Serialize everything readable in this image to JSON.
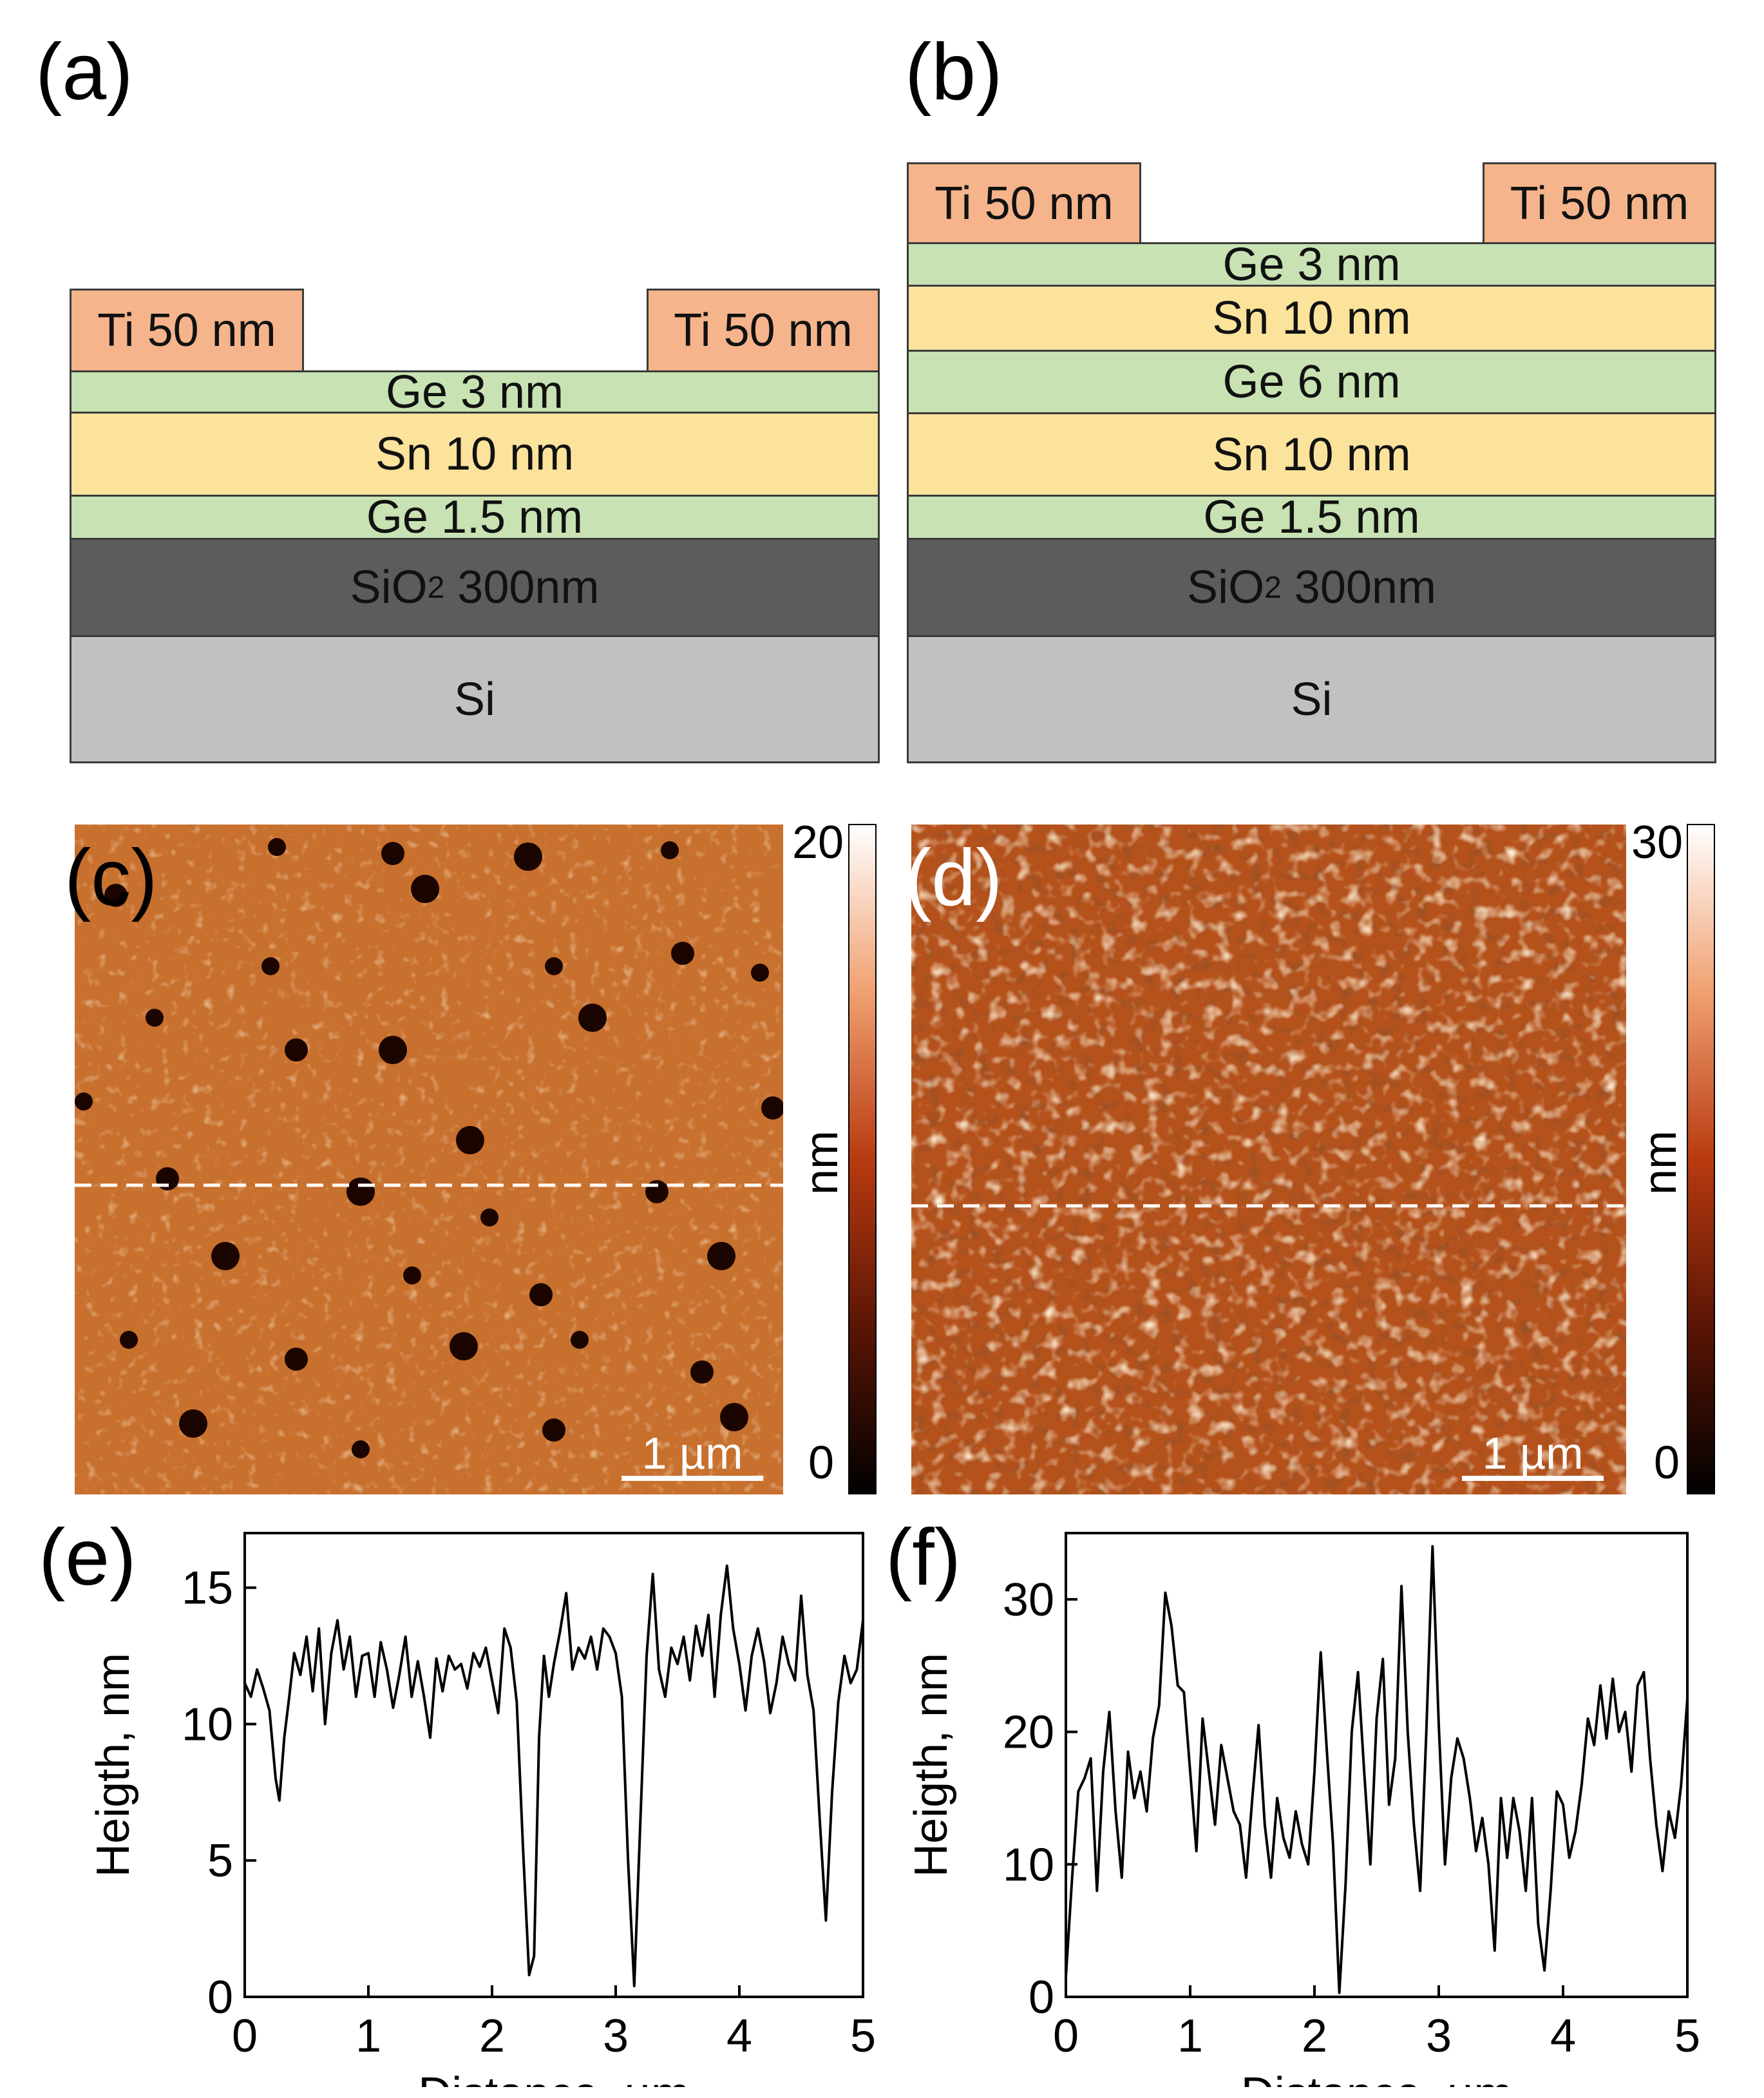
{
  "figure": {
    "panel_a": {
      "label": "(a)",
      "electrode_left": "Ti 50 nm",
      "electrode_right": "Ti 50 nm",
      "layers": [
        "Ge 3 nm",
        "Sn 10 nm",
        "Ge 1.5 nm"
      ],
      "oxide": {
        "main": "SiO",
        "sub": "2",
        "rest": " 300nm"
      },
      "substrate": "Si"
    },
    "panel_b": {
      "label": "(b)",
      "electrode_left": "Ti 50 nm",
      "electrode_right": "Ti 50 nm",
      "layers": [
        "Ge 3 nm",
        "Sn 10 nm",
        "Ge 6 nm",
        "Sn 10 nm",
        "Ge 1.5 nm"
      ],
      "oxide": {
        "main": "SiO",
        "sub": "2",
        "rest": " 300nm"
      },
      "substrate": "Si"
    },
    "panel_c": {
      "label": "(c)",
      "scale_bar": "1 µm",
      "colorbar_max": "20",
      "colorbar_min": "0",
      "colorbar_unit": "nm"
    },
    "panel_d": {
      "label": "(d)",
      "scale_bar": "1 µm",
      "colorbar_max": "30",
      "colorbar_min": "0",
      "colorbar_unit": "nm"
    },
    "colors": {
      "ti": "#f5b48c",
      "ge": "#c8e2b3",
      "sn": "#fbe39c",
      "sio2": "#5c5c5c",
      "si": "#c1c1c1",
      "afm_base": "#c8702e"
    }
  },
  "chart_data": [
    {
      "id": "e",
      "label": "(e)",
      "type": "line",
      "xlabel": "Distance, µm",
      "ylabel": "Heigth, nm",
      "xlim": [
        0,
        5
      ],
      "ylim": [
        0,
        17
      ],
      "xticks": [
        "0",
        "1",
        "2",
        "3",
        "4",
        "5"
      ],
      "yticks": [
        "0",
        "5",
        "10",
        "15"
      ],
      "x": [
        0,
        0.05,
        0.1,
        0.15,
        0.2,
        0.25,
        0.28,
        0.32,
        0.36,
        0.4,
        0.45,
        0.5,
        0.55,
        0.6,
        0.65,
        0.7,
        0.75,
        0.8,
        0.85,
        0.9,
        0.95,
        1.0,
        1.05,
        1.1,
        1.15,
        1.2,
        1.25,
        1.3,
        1.35,
        1.4,
        1.45,
        1.5,
        1.55,
        1.6,
        1.65,
        1.7,
        1.75,
        1.8,
        1.85,
        1.9,
        1.95,
        2.0,
        2.05,
        2.1,
        2.15,
        2.2,
        2.25,
        2.3,
        2.34,
        2.38,
        2.42,
        2.46,
        2.5,
        2.55,
        2.6,
        2.65,
        2.7,
        2.75,
        2.8,
        2.85,
        2.9,
        2.95,
        3.0,
        3.05,
        3.1,
        3.15,
        3.2,
        3.25,
        3.3,
        3.35,
        3.4,
        3.45,
        3.5,
        3.55,
        3.6,
        3.65,
        3.7,
        3.75,
        3.8,
        3.85,
        3.9,
        3.95,
        4.0,
        4.05,
        4.1,
        4.15,
        4.2,
        4.25,
        4.3,
        4.35,
        4.4,
        4.45,
        4.5,
        4.55,
        4.6,
        4.65,
        4.7,
        4.75,
        4.8,
        4.85,
        4.9,
        4.95,
        5.0
      ],
      "values": [
        11.5,
        11.0,
        12.0,
        11.3,
        10.5,
        8.0,
        7.2,
        9.5,
        11.0,
        12.6,
        11.8,
        13.2,
        11.2,
        13.5,
        10.0,
        12.6,
        13.8,
        12.0,
        13.2,
        11.0,
        12.5,
        12.6,
        11.0,
        13.0,
        12.0,
        10.6,
        11.8,
        13.2,
        11.0,
        12.3,
        11.0,
        9.5,
        12.4,
        11.2,
        12.5,
        12.0,
        12.2,
        11.3,
        12.6,
        12.1,
        12.8,
        11.6,
        10.4,
        13.5,
        12.8,
        10.8,
        5.5,
        0.8,
        1.5,
        9.5,
        12.5,
        11.0,
        12.2,
        13.4,
        14.8,
        12.0,
        12.8,
        12.4,
        13.2,
        12.0,
        13.5,
        13.2,
        12.6,
        11.0,
        5.0,
        0.4,
        6.5,
        12.5,
        15.5,
        12.0,
        11.0,
        12.8,
        12.2,
        13.2,
        11.6,
        13.6,
        12.5,
        14.0,
        11.0,
        14.0,
        15.8,
        13.5,
        12.2,
        10.5,
        12.5,
        13.5,
        12.3,
        10.4,
        11.5,
        13.2,
        12.2,
        11.6,
        14.7,
        11.8,
        10.5,
        6.5,
        2.8,
        7.5,
        10.8,
        12.5,
        11.5,
        12.0,
        13.8
      ]
    },
    {
      "id": "f",
      "label": "(f)",
      "type": "line",
      "xlabel": "Distance, µm",
      "ylabel": "Heigth, nm",
      "xlim": [
        0,
        5
      ],
      "ylim": [
        0,
        35
      ],
      "xticks": [
        "0",
        "1",
        "2",
        "3",
        "4",
        "5"
      ],
      "yticks": [
        "0",
        "10",
        "20",
        "30"
      ],
      "x": [
        0,
        0.05,
        0.1,
        0.15,
        0.2,
        0.25,
        0.3,
        0.35,
        0.4,
        0.45,
        0.5,
        0.55,
        0.6,
        0.65,
        0.7,
        0.75,
        0.8,
        0.85,
        0.9,
        0.95,
        1.0,
        1.05,
        1.1,
        1.15,
        1.2,
        1.25,
        1.3,
        1.35,
        1.4,
        1.45,
        1.5,
        1.55,
        1.6,
        1.65,
        1.7,
        1.75,
        1.8,
        1.85,
        1.9,
        1.95,
        2.0,
        2.05,
        2.1,
        2.15,
        2.2,
        2.25,
        2.3,
        2.35,
        2.4,
        2.45,
        2.5,
        2.55,
        2.6,
        2.65,
        2.7,
        2.75,
        2.8,
        2.85,
        2.9,
        2.95,
        3.0,
        3.05,
        3.1,
        3.15,
        3.2,
        3.25,
        3.3,
        3.35,
        3.4,
        3.45,
        3.5,
        3.55,
        3.6,
        3.65,
        3.7,
        3.75,
        3.8,
        3.85,
        3.9,
        3.95,
        4.0,
        4.05,
        4.1,
        4.15,
        4.2,
        4.25,
        4.3,
        4.35,
        4.4,
        4.45,
        4.5,
        4.55,
        4.6,
        4.65,
        4.7,
        4.75,
        4.8,
        4.85,
        4.9,
        4.95,
        5.0
      ],
      "values": [
        1.5,
        9.0,
        15.5,
        16.5,
        18.0,
        8.0,
        17.0,
        21.5,
        14.0,
        9.0,
        18.5,
        15.0,
        17.0,
        14.0,
        19.5,
        22.0,
        30.5,
        28.0,
        23.5,
        23.0,
        17.0,
        11.0,
        21.0,
        17.0,
        13.0,
        19.0,
        16.5,
        14.0,
        13.0,
        9.0,
        15.0,
        20.5,
        13.0,
        9.0,
        15.0,
        12.0,
        10.5,
        14.0,
        11.5,
        10.0,
        17.0,
        26.0,
        18.5,
        11.5,
        0.3,
        8.5,
        20.0,
        24.5,
        17.0,
        10.0,
        21.0,
        25.5,
        14.5,
        18.0,
        31.0,
        20.0,
        13.0,
        8.0,
        20.0,
        34.0,
        20.5,
        10.0,
        16.5,
        19.5,
        18.0,
        15.0,
        11.0,
        13.5,
        10.0,
        3.5,
        15.0,
        10.5,
        15.0,
        12.5,
        8.0,
        15.0,
        5.5,
        2.0,
        8.0,
        15.5,
        14.5,
        10.5,
        12.5,
        16.0,
        21.0,
        19.0,
        23.5,
        19.5,
        24.0,
        20.0,
        21.5,
        17.0,
        23.5,
        24.5,
        18.0,
        13.0,
        9.5,
        14.0,
        12.0,
        16.0,
        22.5
      ]
    }
  ]
}
